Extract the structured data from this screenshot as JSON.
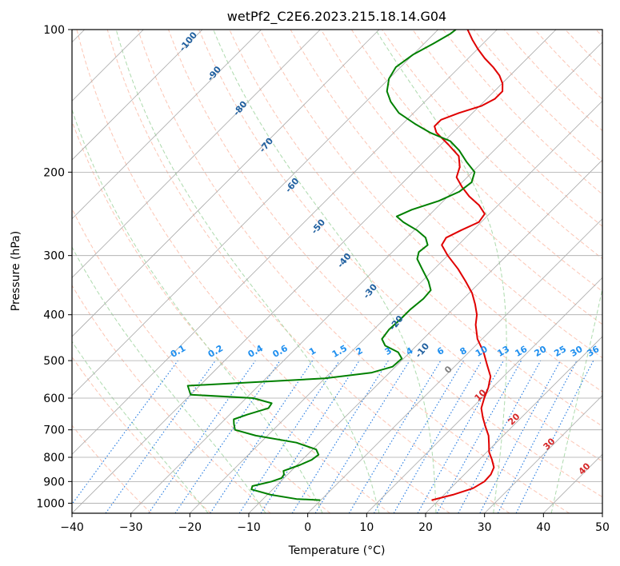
{
  "chart_data": {
    "type": "line",
    "title": "wetPf2_C2E6.2023.215.18.14.G04",
    "xlabel": "Temperature (°C)",
    "ylabel": "Pressure (hPa)",
    "xlim": [
      -40,
      50
    ],
    "ylim": [
      1050,
      100
    ],
    "y_scale": "log",
    "grid": true,
    "x_ticks": [
      -40,
      -30,
      -20,
      -10,
      0,
      10,
      20,
      30,
      40,
      50
    ],
    "y_ticks": [
      100,
      200,
      300,
      400,
      500,
      600,
      700,
      800,
      900,
      1000
    ],
    "skew": true,
    "series": [
      {
        "role": "temperature",
        "color": "#e00000",
        "points": [
          {
            "p": 985,
            "t": 18.8
          },
          {
            "p": 960,
            "t": 21.5
          },
          {
            "p": 930,
            "t": 23.8
          },
          {
            "p": 900,
            "t": 24.6
          },
          {
            "p": 870,
            "t": 24.5
          },
          {
            "p": 840,
            "t": 23.8
          },
          {
            "p": 810,
            "t": 22.2
          },
          {
            "p": 780,
            "t": 20.4
          },
          {
            "p": 750,
            "t": 19.0
          },
          {
            "p": 720,
            "t": 17.5
          },
          {
            "p": 690,
            "t": 15.5
          },
          {
            "p": 660,
            "t": 13.5
          },
          {
            "p": 630,
            "t": 11.6
          },
          {
            "p": 600,
            "t": 10.4
          },
          {
            "p": 570,
            "t": 9.3
          },
          {
            "p": 540,
            "t": 7.8
          },
          {
            "p": 510,
            "t": 5.2
          },
          {
            "p": 480,
            "t": 2.5
          },
          {
            "p": 450,
            "t": -0.8
          },
          {
            "p": 420,
            "t": -3.5
          },
          {
            "p": 400,
            "t": -5.0
          },
          {
            "p": 380,
            "t": -7.1
          },
          {
            "p": 360,
            "t": -9.5
          },
          {
            "p": 340,
            "t": -12.6
          },
          {
            "p": 320,
            "t": -16.0
          },
          {
            "p": 300,
            "t": -20.0
          },
          {
            "p": 285,
            "t": -22.8
          },
          {
            "p": 275,
            "t": -23.3
          },
          {
            "p": 265,
            "t": -22.0
          },
          {
            "p": 255,
            "t": -20.4
          },
          {
            "p": 245,
            "t": -20.8
          },
          {
            "p": 235,
            "t": -23.2
          },
          {
            "p": 225,
            "t": -26.4
          },
          {
            "p": 215,
            "t": -29.2
          },
          {
            "p": 205,
            "t": -31.8
          },
          {
            "p": 195,
            "t": -33.0
          },
          {
            "p": 185,
            "t": -35.0
          },
          {
            "p": 175,
            "t": -38.7
          },
          {
            "p": 165,
            "t": -42.8
          },
          {
            "p": 160,
            "t": -44.2
          },
          {
            "p": 155,
            "t": -44.2
          },
          {
            "p": 150,
            "t": -42.3
          },
          {
            "p": 145,
            "t": -39.7
          },
          {
            "p": 140,
            "t": -38.6
          },
          {
            "p": 135,
            "t": -38.6
          },
          {
            "p": 130,
            "t": -39.9
          },
          {
            "p": 125,
            "t": -41.8
          },
          {
            "p": 120,
            "t": -44.3
          },
          {
            "p": 115,
            "t": -47.2
          },
          {
            "p": 110,
            "t": -49.9
          },
          {
            "p": 105,
            "t": -52.5
          },
          {
            "p": 100,
            "t": -55.0
          }
        ]
      },
      {
        "role": "dewpoint",
        "color": "#008000",
        "points": [
          {
            "p": 985,
            "t": -0.1
          },
          {
            "p": 980,
            "t": -4.3
          },
          {
            "p": 960,
            "t": -9.4
          },
          {
            "p": 935,
            "t": -13.6
          },
          {
            "p": 920,
            "t": -14.0
          },
          {
            "p": 900,
            "t": -11.5
          },
          {
            "p": 885,
            "t": -10.4
          },
          {
            "p": 870,
            "t": -10.6
          },
          {
            "p": 855,
            "t": -11.3
          },
          {
            "p": 830,
            "t": -9.5
          },
          {
            "p": 810,
            "t": -8.4
          },
          {
            "p": 790,
            "t": -8.1
          },
          {
            "p": 770,
            "t": -9.4
          },
          {
            "p": 745,
            "t": -13.9
          },
          {
            "p": 720,
            "t": -22.0
          },
          {
            "p": 700,
            "t": -26.5
          },
          {
            "p": 680,
            "t": -27.7
          },
          {
            "p": 665,
            "t": -28.5
          },
          {
            "p": 650,
            "t": -27.0
          },
          {
            "p": 630,
            "t": -24.5
          },
          {
            "p": 615,
            "t": -24.8
          },
          {
            "p": 600,
            "t": -28.8
          },
          {
            "p": 590,
            "t": -40.0
          },
          {
            "p": 565,
            "t": -42.0
          },
          {
            "p": 545,
            "t": -20.0
          },
          {
            "p": 530,
            "t": -13.0
          },
          {
            "p": 515,
            "t": -10.5
          },
          {
            "p": 495,
            "t": -10.3
          },
          {
            "p": 480,
            "t": -12.0
          },
          {
            "p": 465,
            "t": -15.3
          },
          {
            "p": 450,
            "t": -17.0
          },
          {
            "p": 430,
            "t": -17.4
          },
          {
            "p": 410,
            "t": -17.2
          },
          {
            "p": 390,
            "t": -17.2
          },
          {
            "p": 370,
            "t": -16.8
          },
          {
            "p": 355,
            "t": -17.0
          },
          {
            "p": 340,
            "t": -18.9
          },
          {
            "p": 320,
            "t": -22.1
          },
          {
            "p": 305,
            "t": -24.6
          },
          {
            "p": 295,
            "t": -25.5
          },
          {
            "p": 285,
            "t": -25.2
          },
          {
            "p": 275,
            "t": -26.8
          },
          {
            "p": 265,
            "t": -29.6
          },
          {
            "p": 255,
            "t": -33.2
          },
          {
            "p": 248,
            "t": -35.3
          },
          {
            "p": 240,
            "t": -33.9
          },
          {
            "p": 230,
            "t": -30.8
          },
          {
            "p": 220,
            "t": -28.9
          },
          {
            "p": 210,
            "t": -28.4
          },
          {
            "p": 200,
            "t": -29.6
          },
          {
            "p": 190,
            "t": -32.8
          },
          {
            "p": 180,
            "t": -35.9
          },
          {
            "p": 172,
            "t": -39.0
          },
          {
            "p": 165,
            "t": -43.9
          },
          {
            "p": 158,
            "t": -48.0
          },
          {
            "p": 150,
            "t": -52.5
          },
          {
            "p": 142,
            "t": -55.8
          },
          {
            "p": 135,
            "t": -58.2
          },
          {
            "p": 127,
            "t": -60.0
          },
          {
            "p": 120,
            "t": -60.8
          },
          {
            "p": 113,
            "t": -60.0
          },
          {
            "p": 107,
            "t": -58.4
          },
          {
            "p": 102,
            "t": -57.2
          },
          {
            "p": 100,
            "t": -57.0
          }
        ]
      }
    ],
    "annotations": {
      "mixing_ratio_labels": [
        "0.1",
        "0.2",
        "0.4",
        "0.6",
        "1",
        "1.5",
        "2",
        "3",
        "4",
        "6",
        "8",
        "10",
        "13",
        "16",
        "20",
        "25",
        "30",
        "36"
      ],
      "dry_adiabat_labels": [
        "-100",
        "-90",
        "-80",
        "-70",
        "-60",
        "-50",
        "-40",
        "-30",
        "-20",
        "-10"
      ],
      "moist_adiabat_labels": [
        "0",
        "10",
        "20",
        "30",
        "40"
      ]
    },
    "colors": {
      "temperature": "#e00000",
      "dewpoint": "#008000",
      "dry_adiabat": "#fbb19b",
      "moist_adiabat": "#9fd49f",
      "mixing_ratio": "#1f77e0",
      "isotherm": "#a9a9a9",
      "dry_adiabat_label": "#1f5f9f",
      "mixing_ratio_label": "#1f8fef",
      "moist_adiabat_label": "#d62728"
    }
  }
}
